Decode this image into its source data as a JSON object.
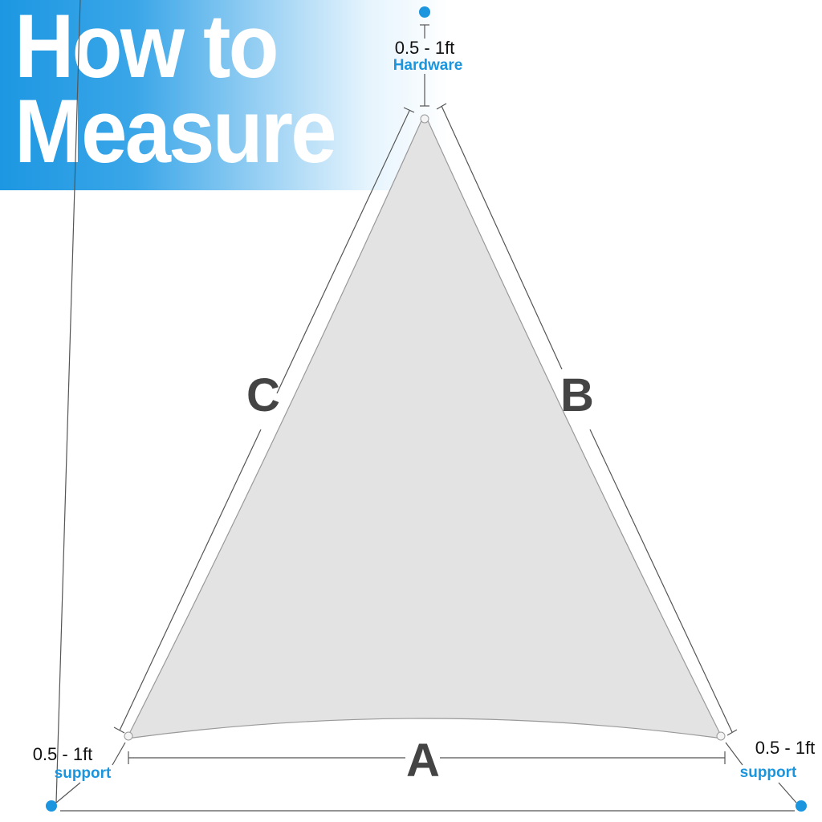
{
  "title": {
    "line1": "How to",
    "line2": "Measure"
  },
  "top_anchor": {
    "distance": "0.5 - 1ft",
    "label": "Hardware"
  },
  "left_anchor": {
    "distance": "0.5 - 1ft",
    "label": "support"
  },
  "right_anchor": {
    "distance": "0.5 - 1ft",
    "label": "support"
  },
  "sides": {
    "a": "A",
    "b": "B",
    "c": "C"
  },
  "colors": {
    "accent": "#1a95de",
    "sail": "#e3e3e3",
    "label": "#444444"
  }
}
